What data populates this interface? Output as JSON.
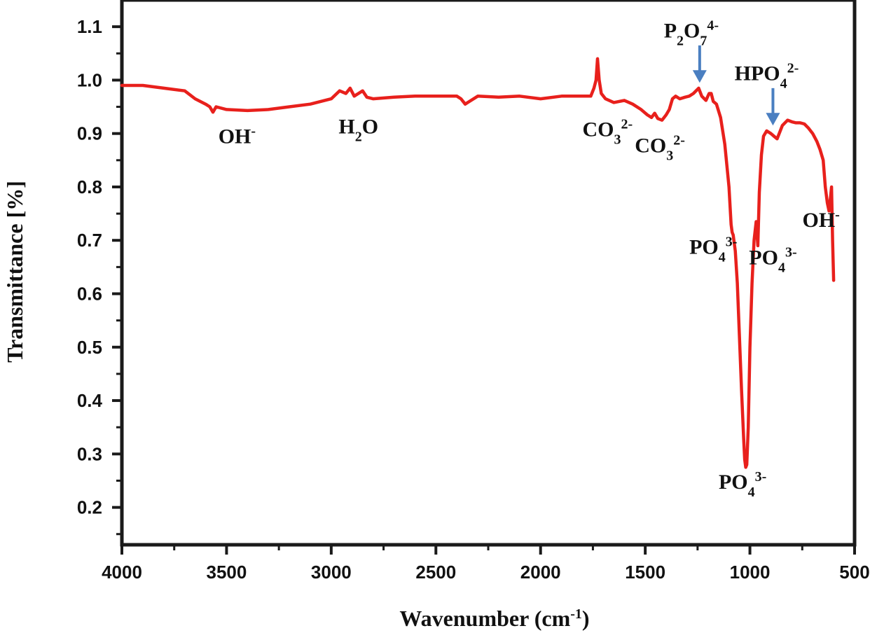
{
  "chart_data": {
    "type": "line",
    "title": "",
    "xlabel": "Wavenumber (cm",
    "xlabel_sup": "-1",
    "xlabel_close": ")",
    "ylabel": "Transmittance [%]",
    "xlim": [
      4000,
      500
    ],
    "ylim": [
      0.13,
      1.15
    ],
    "x_ticks": [
      4000,
      3500,
      3000,
      2500,
      2000,
      1500,
      1000,
      500
    ],
    "x_tick_labels": [
      "4000",
      "3500",
      "3000",
      "2500",
      "2000",
      "1500",
      "1000",
      "500"
    ],
    "y_ticks": [
      0.2,
      0.3,
      0.4,
      0.5,
      0.6,
      0.7,
      0.8,
      0.9,
      1.0,
      1.1
    ],
    "y_tick_labels": [
      "0.2",
      "0.3",
      "0.4",
      "0.5",
      "0.6",
      "0.7",
      "0.8",
      "0.9",
      "1.0",
      "1.1"
    ],
    "grid": false,
    "series": [
      {
        "name": "FTIR spectrum",
        "color": "#e8201c",
        "x": [
          4000,
          3900,
          3800,
          3700,
          3650,
          3600,
          3580,
          3565,
          3550,
          3500,
          3400,
          3300,
          3200,
          3100,
          3000,
          2960,
          2930,
          2910,
          2890,
          2870,
          2850,
          2830,
          2800,
          2700,
          2600,
          2500,
          2400,
          2380,
          2360,
          2340,
          2300,
          2200,
          2100,
          2000,
          1900,
          1800,
          1760,
          1745,
          1735,
          1728,
          1720,
          1710,
          1690,
          1650,
          1600,
          1560,
          1520,
          1490,
          1470,
          1455,
          1440,
          1420,
          1400,
          1385,
          1370,
          1355,
          1335,
          1310,
          1290,
          1270,
          1245,
          1230,
          1210,
          1195,
          1185,
          1175,
          1160,
          1140,
          1120,
          1100,
          1090,
          1085,
          1080,
          1070,
          1060,
          1050,
          1040,
          1030,
          1025,
          1020,
          1015,
          1008,
          1000,
          990,
          980,
          970,
          962,
          955,
          945,
          935,
          920,
          900,
          885,
          870,
          860,
          845,
          820,
          800,
          780,
          760,
          740,
          720,
          700,
          680,
          665,
          650,
          640,
          630,
          622,
          615,
          610,
          605,
          600
        ],
        "y": [
          0.99,
          0.99,
          0.985,
          0.98,
          0.965,
          0.955,
          0.95,
          0.94,
          0.95,
          0.945,
          0.943,
          0.945,
          0.95,
          0.955,
          0.965,
          0.98,
          0.975,
          0.985,
          0.97,
          0.975,
          0.98,
          0.968,
          0.965,
          0.968,
          0.97,
          0.97,
          0.97,
          0.965,
          0.955,
          0.96,
          0.97,
          0.968,
          0.97,
          0.965,
          0.97,
          0.97,
          0.97,
          0.985,
          1.0,
          1.04,
          1.0,
          0.975,
          0.965,
          0.958,
          0.962,
          0.955,
          0.945,
          0.935,
          0.93,
          0.938,
          0.928,
          0.925,
          0.935,
          0.945,
          0.965,
          0.97,
          0.965,
          0.968,
          0.97,
          0.975,
          0.985,
          0.97,
          0.962,
          0.975,
          0.975,
          0.96,
          0.955,
          0.93,
          0.88,
          0.8,
          0.73,
          0.715,
          0.71,
          0.68,
          0.62,
          0.52,
          0.42,
          0.33,
          0.29,
          0.275,
          0.28,
          0.35,
          0.5,
          0.62,
          0.7,
          0.735,
          0.69,
          0.79,
          0.86,
          0.895,
          0.905,
          0.9,
          0.895,
          0.89,
          0.9,
          0.915,
          0.925,
          0.922,
          0.92,
          0.92,
          0.918,
          0.91,
          0.9,
          0.885,
          0.87,
          0.85,
          0.8,
          0.77,
          0.755,
          0.78,
          0.8,
          0.7,
          0.625
        ]
      }
    ],
    "annotations": [
      {
        "base": "OH",
        "sub": "",
        "sup": "-",
        "x": 3450,
        "y": 0.882
      },
      {
        "base": "H",
        "sub": "2",
        "rest": "O",
        "sup": "",
        "x": 2870,
        "y": 0.9
      },
      {
        "base": "CO",
        "sub": "3",
        "sup": "2-",
        "x": 1680,
        "y": 0.895
      },
      {
        "base": "CO",
        "sub": "3",
        "sup": "2-",
        "x": 1430,
        "y": 0.865
      },
      {
        "base": "P",
        "sub": "2",
        "rest": "O",
        "sub2": "7",
        "sup": "4-",
        "x": 1280,
        "y": 1.08,
        "arrow": true,
        "arrow_y_top": 1.065,
        "arrow_y_bottom": 0.995,
        "arrow_x": 1240
      },
      {
        "base": "HPO",
        "sub": "4",
        "sup": "2-",
        "x": 920,
        "y": 1.0,
        "arrow": true,
        "arrow_y_top": 0.985,
        "arrow_y_bottom": 0.915,
        "arrow_x": 890
      },
      {
        "base": "OH",
        "sub": "",
        "sup": "-",
        "x": 660,
        "y": 0.725
      },
      {
        "base": "PO",
        "sub": "4",
        "sup": "3-",
        "x": 1175,
        "y": 0.675
      },
      {
        "base": "PO",
        "sub": "4",
        "sup": "3-",
        "x": 890,
        "y": 0.655
      },
      {
        "base": "PO",
        "sub": "4",
        "sup": "3-",
        "x": 1035,
        "y": 0.235
      }
    ],
    "colors": {
      "line": "#e8201c",
      "arrow": "#4a7fc1",
      "axis": "#1a1a1a"
    }
  }
}
